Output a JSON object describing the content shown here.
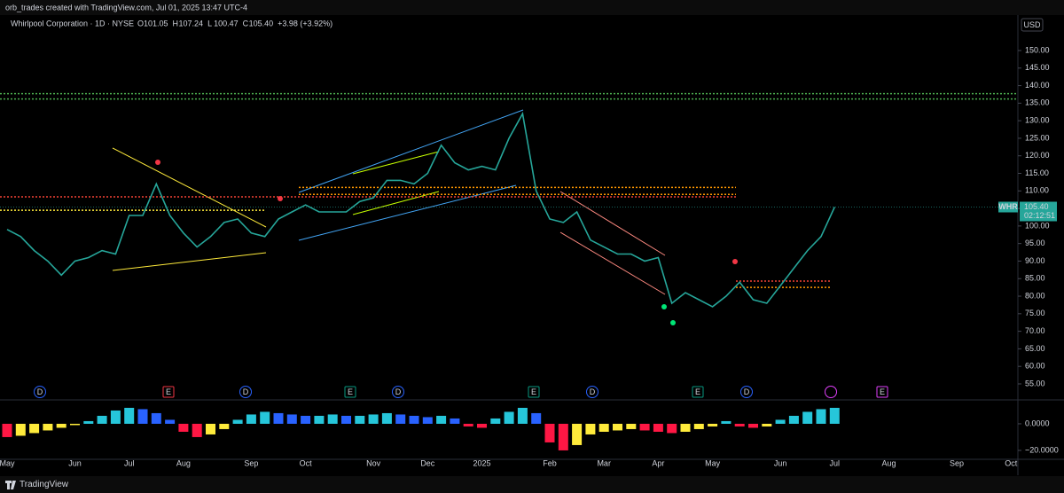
{
  "header": {
    "text": "orb_trades created with TradingView.com, Jul 01, 2025 13:47 UTC-4"
  },
  "footer": {
    "brand": "TradingView"
  },
  "chart_data": [
    {
      "type": "line",
      "title": "Whirlpool Corporation · 1D · NYSE",
      "ohlc": [
        {
          "label": "O",
          "value": 101.05
        },
        {
          "label": "H",
          "value": 107.24
        },
        {
          "label": "L",
          "value": 100.47
        },
        {
          "label": "C",
          "value": {
            "value": 105.4,
            "label": "105.40"
          }
        }
      ],
      "change": "+3.98 (+3.92%)",
      "currency": "USD",
      "last": {
        "symbol": "WHR",
        "price": {
          "value": 105.4,
          "label": "105.40"
        },
        "countdown": "02:12:51",
        "color": "#26a69a"
      },
      "categories": [
        "May",
        null,
        null,
        null,
        null,
        "Jun",
        null,
        null,
        null,
        "Jul",
        null,
        null,
        null,
        "Aug",
        null,
        null,
        null,
        null,
        "Sep",
        null,
        null,
        null,
        "Oct",
        null,
        null,
        null,
        null,
        "Nov",
        null,
        null,
        null,
        "Dec",
        null,
        null,
        null,
        "2025",
        null,
        null,
        null,
        null,
        "Feb",
        null,
        null,
        null,
        "Mar",
        null,
        null,
        null,
        "Apr",
        null,
        null,
        null,
        "May",
        null,
        null,
        null,
        null,
        "Jun",
        null,
        null,
        null,
        "Jul",
        null,
        null,
        null,
        "Aug",
        null,
        null,
        null,
        null,
        "Sep",
        null,
        null,
        null,
        "Oct"
      ],
      "series": [
        {
          "name": "WHR",
          "color": "#26a69a",
          "values": [
            99,
            97,
            93,
            90,
            86,
            90,
            91,
            93,
            92,
            103,
            103,
            112,
            103,
            98,
            94,
            97,
            101,
            102,
            98,
            97,
            102,
            104,
            106,
            104,
            104,
            104,
            107,
            108,
            113,
            113,
            112,
            115,
            123,
            118,
            116,
            117,
            116,
            125,
            132,
            110,
            102,
            101,
            104,
            96,
            94,
            92,
            92,
            90,
            91,
            78,
            81,
            79,
            77,
            80,
            84,
            79,
            78,
            83,
            88,
            93,
            97,
            105.4,
            null,
            null,
            null,
            null,
            null,
            null,
            null,
            null,
            null,
            null,
            null,
            null,
            null
          ]
        }
      ],
      "levels": [
        {
          "value": 137.7,
          "color": "#4caf50"
        },
        {
          "value": 136.2,
          "color": "#4caf50"
        },
        {
          "value": 111,
          "color": "#ff9800"
        },
        {
          "value": 109,
          "color": "#ff9800"
        },
        {
          "value": 108.3,
          "color": "#f44336"
        },
        {
          "value": 104.5,
          "color": "#ffeb3b"
        },
        {
          "value": 84.3,
          "color": "#f44336"
        },
        {
          "value": 82.5,
          "color": "#ff9800"
        }
      ],
      "events": [
        {
          "label": "D",
          "color": "#2962ff"
        },
        {
          "label": "E",
          "color": "#f23645"
        },
        {
          "label": "D",
          "color": "#2962ff"
        },
        {
          "label": "E",
          "color": "#089981"
        },
        {
          "label": "D",
          "color": "#2962ff"
        },
        {
          "label": "E",
          "color": "#089981"
        },
        {
          "label": "D",
          "color": "#2962ff"
        },
        {
          "label": "E",
          "color": "#089981"
        },
        {
          "label": "D",
          "color": "#2962ff"
        },
        {
          "label": "E",
          "color": "#e040fb"
        }
      ],
      "ylim": [
        50.7,
        159.85
      ],
      "yticks": [
        {
          "value": 55,
          "label": "55.00"
        },
        {
          "value": 60,
          "label": "60.00"
        },
        {
          "value": 65,
          "label": "65.00"
        },
        {
          "value": 70,
          "label": "70.00"
        },
        {
          "value": 75,
          "label": "75.00"
        },
        {
          "value": 80,
          "label": "80.00"
        },
        {
          "value": 85,
          "label": "85.00"
        },
        {
          "value": 90,
          "label": "90.00"
        },
        {
          "value": 95,
          "label": "95.00"
        },
        {
          "value": 100,
          "label": "100.00"
        },
        {
          "value": 105,
          "label": "105.00"
        },
        {
          "value": 110,
          "label": "110.00"
        },
        {
          "value": 115,
          "label": "115.00"
        },
        {
          "value": 120,
          "label": "120.00"
        },
        {
          "value": 125,
          "label": "125.00"
        },
        {
          "value": 130,
          "label": "130.00"
        },
        {
          "value": 135,
          "label": "135.00"
        },
        {
          "value": 140,
          "label": "140.00"
        },
        {
          "value": 145,
          "label": "145.00"
        },
        {
          "value": 150,
          "label": "150.00"
        }
      ]
    },
    {
      "type": "bar",
      "values": [
        -10,
        -9,
        -7,
        -5,
        -3,
        -1,
        2,
        6,
        10,
        12,
        11,
        8,
        3,
        -6,
        -10,
        -8,
        -4,
        3,
        7,
        9,
        8,
        7,
        6,
        6,
        7,
        6,
        6,
        7,
        8,
        7,
        6,
        5,
        6,
        4,
        -2,
        -3,
        4,
        9,
        12,
        8,
        -14,
        -20,
        -16,
        -8,
        -6,
        -5,
        -4,
        -5,
        -6,
        -7,
        -6,
        -4,
        -2,
        2,
        -2,
        -3,
        -2,
        3,
        6,
        9,
        11,
        12
      ],
      "ylim": [
        -26.7,
        17.3
      ],
      "yticks": [
        {
          "value": 0,
          "label": "0.0000"
        },
        {
          "value": -20,
          "label": "−20.0000"
        }
      ]
    }
  ]
}
